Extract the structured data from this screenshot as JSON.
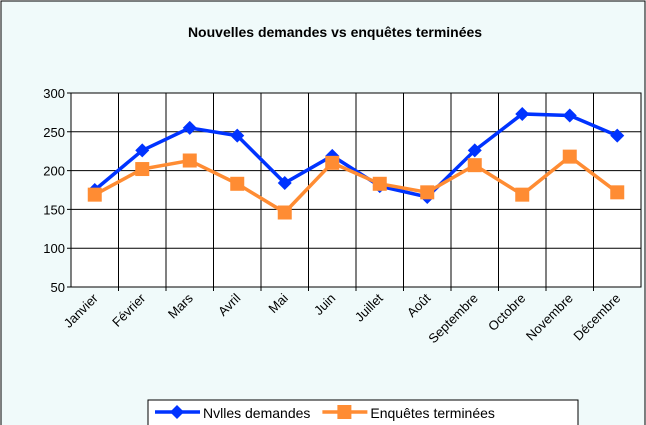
{
  "chart_data": {
    "type": "line",
    "title": "Nouvelles demandes vs enquêtes terminées",
    "categories": [
      "Janvier",
      "Février",
      "Mars",
      "Avril",
      "Mai",
      "Juin",
      "Juillet",
      "Août",
      "Septembre",
      "Octobre",
      "Novembre",
      "Décembre"
    ],
    "series": [
      {
        "name": "Nvlles demandes",
        "color": "#0033ff",
        "marker": "diamond",
        "values": [
          175,
          226,
          255,
          245,
          184,
          219,
          180,
          166,
          226,
          273,
          271,
          245
        ]
      },
      {
        "name": "Enquêtes terminées",
        "color": "#ff8c33",
        "marker": "square",
        "values": [
          169,
          202,
          213,
          183,
          146,
          210,
          183,
          172,
          207,
          169,
          218,
          172
        ]
      }
    ],
    "ylim": [
      50,
      300
    ],
    "yticks": [
      50,
      100,
      150,
      200,
      250,
      300
    ],
    "grid": true,
    "legend": "bottom"
  }
}
